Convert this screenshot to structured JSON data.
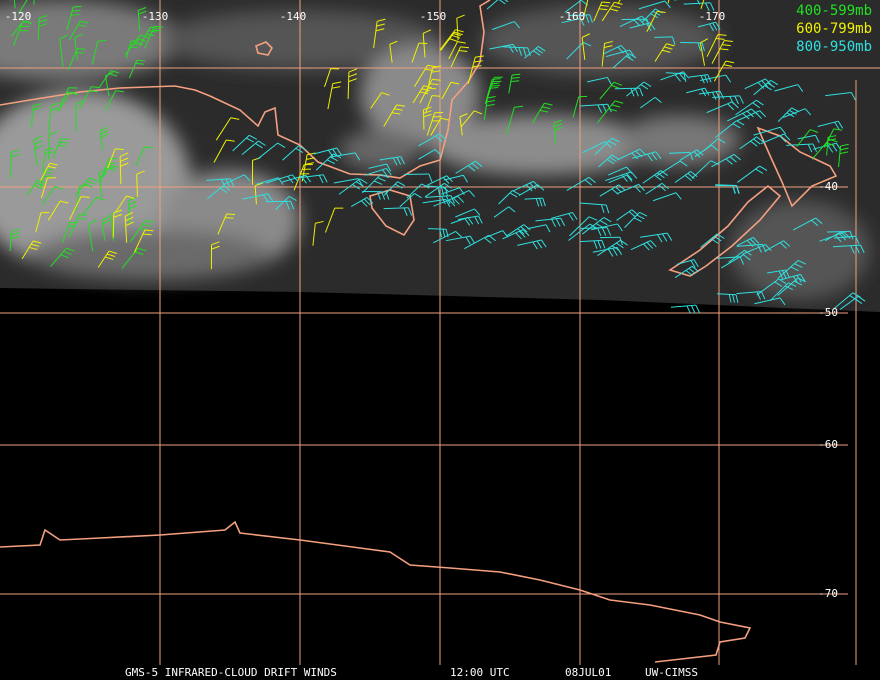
{
  "map": {
    "lon_labels": [
      "-120",
      "-130",
      "-140",
      "-150",
      "-160",
      "-170"
    ],
    "lat_labels": [
      "-40",
      "-50",
      "-60",
      "-70"
    ],
    "legend": [
      {
        "label": "400-599mb",
        "color": "#22e022"
      },
      {
        "label": "600-799mb",
        "color": "#f0f000"
      },
      {
        "label": "800-950mb",
        "color": "#30e0e0"
      }
    ],
    "footer": [
      "GMS-5 INFRARED-CLOUD DRIFT WINDS",
      "12:00 UTC",
      "08JUL01",
      "UW-CIMSS"
    ]
  }
}
